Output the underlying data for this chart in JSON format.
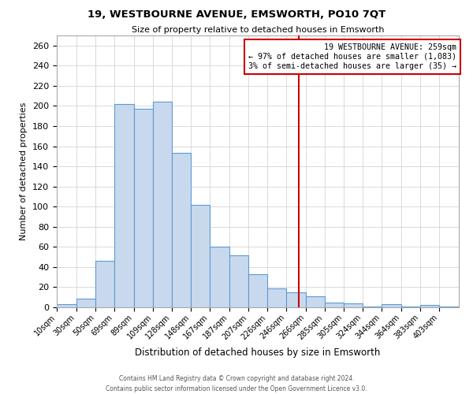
{
  "title": "19, WESTBOURNE AVENUE, EMSWORTH, PO10 7QT",
  "subtitle": "Size of property relative to detached houses in Emsworth",
  "xlabel": "Distribution of detached houses by size in Emsworth",
  "ylabel": "Number of detached properties",
  "bins": [
    10,
    30,
    50,
    69,
    89,
    109,
    128,
    148,
    167,
    187,
    207,
    226,
    246,
    266,
    285,
    305,
    324,
    344,
    364,
    383,
    403
  ],
  "counts": [
    3,
    9,
    46,
    202,
    197,
    204,
    153,
    102,
    60,
    52,
    33,
    19,
    15,
    11,
    5,
    4,
    1,
    3,
    1,
    2,
    1
  ],
  "bin_labels": [
    "10sqm",
    "30sqm",
    "50sqm",
    "69sqm",
    "89sqm",
    "109sqm",
    "128sqm",
    "148sqm",
    "167sqm",
    "187sqm",
    "207sqm",
    "226sqm",
    "246sqm",
    "266sqm",
    "285sqm",
    "305sqm",
    "324sqm",
    "344sqm",
    "364sqm",
    "383sqm",
    "403sqm"
  ],
  "bar_fill": "#c9d9ed",
  "bar_edge": "#5b9bd5",
  "vline_x": 259,
  "vline_color": "#cc0000",
  "annotation_line1": "19 WESTBOURNE AVENUE: 259sqm",
  "annotation_line2": "← 97% of detached houses are smaller (1,083)",
  "annotation_line3": "3% of semi-detached houses are larger (35) →",
  "annotation_box_edge": "#cc0000",
  "footer_line1": "Contains HM Land Registry data © Crown copyright and database right 2024.",
  "footer_line2": "Contains public sector information licensed under the Open Government Licence v3.0.",
  "ylim": [
    0,
    270
  ],
  "yticks": [
    0,
    20,
    40,
    60,
    80,
    100,
    120,
    140,
    160,
    180,
    200,
    220,
    240,
    260
  ],
  "background_color": "#ffffff",
  "grid_color": "#cccccc"
}
